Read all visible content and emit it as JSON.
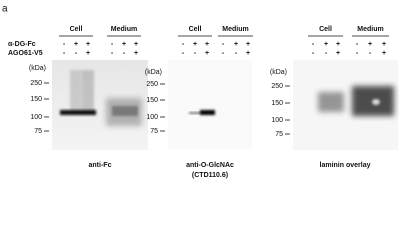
{
  "figure_label": "a",
  "panels": [
    {
      "headers": [
        "Cell",
        "Medium"
      ],
      "rows": [
        {
          "label": "α-DG-Fc",
          "signs": [
            "-",
            "+",
            "+",
            "-",
            "+",
            "+"
          ]
        },
        {
          "label": "AGO61-V5",
          "signs": [
            "-",
            "-",
            "+",
            "-",
            "-",
            "+"
          ]
        }
      ],
      "markers": {
        "unit": "(kDa)",
        "labels": [
          250,
          150,
          100,
          75
        ]
      },
      "caption": [
        "anti-Fc"
      ]
    },
    {
      "headers": [
        "Cell",
        "Medium"
      ],
      "rows": [
        {
          "signs": [
            "-",
            "+",
            "+",
            "-",
            "+",
            "+"
          ]
        },
        {
          "signs": [
            "-",
            "-",
            "+",
            "-",
            "-",
            "+"
          ]
        }
      ],
      "markers": {
        "unit": "(kDa)",
        "labels": [
          250,
          150,
          100,
          75
        ]
      },
      "caption": [
        "anti-O-GlcNAc",
        "(CTD110.6)"
      ]
    },
    {
      "headers": [
        "Cell",
        "Medium"
      ],
      "rows": [
        {
          "signs": [
            "-",
            "+",
            "+",
            "-",
            "+",
            "+"
          ]
        },
        {
          "signs": [
            "-",
            "-",
            "+",
            "-",
            "-",
            "+"
          ]
        }
      ],
      "markers": {
        "unit": "(kDa)",
        "labels": [
          250,
          150,
          100,
          75
        ]
      },
      "caption": [
        "laminin overlay"
      ]
    }
  ]
}
